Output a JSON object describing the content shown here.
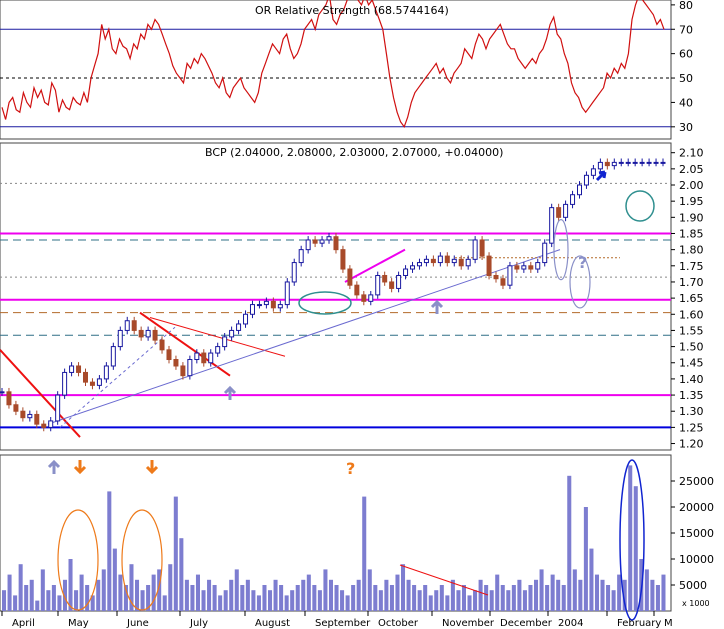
{
  "chart_data": [
    {
      "type": "line",
      "title": "OR Relative Strength (68.5744164)",
      "ylim": [
        25,
        82
      ],
      "yticks": [
        30,
        40,
        50,
        60,
        70,
        80
      ],
      "reference_lines": [
        30,
        50,
        70
      ],
      "color": "#d01010",
      "series": [
        {
          "values": [
            38,
            33,
            40,
            42,
            37,
            36,
            44,
            40,
            38,
            46,
            42,
            45,
            40,
            39,
            48,
            45,
            36,
            41,
            38,
            37,
            42,
            40,
            39,
            44,
            40,
            50,
            55,
            60,
            72,
            66,
            70,
            62,
            60,
            66,
            63,
            62,
            58,
            64,
            62,
            68,
            66,
            72,
            70,
            74,
            72,
            68,
            64,
            60,
            55,
            52,
            50,
            48,
            56,
            54,
            58,
            56,
            60,
            58,
            55,
            52,
            48,
            46,
            50,
            44,
            42,
            46,
            48,
            50,
            46,
            44,
            42,
            40,
            44,
            52,
            56,
            60,
            64,
            62,
            60,
            66,
            68,
            62,
            58,
            60,
            64,
            70,
            72,
            74,
            70,
            76,
            78,
            80,
            84,
            74,
            72,
            76,
            78,
            82,
            84,
            86,
            82,
            80,
            84,
            80,
            82,
            78,
            74,
            70,
            60,
            50,
            42,
            36,
            32,
            30,
            34,
            40,
            44,
            46,
            48,
            50,
            52,
            54,
            56,
            52,
            54,
            50,
            48,
            52,
            54,
            56,
            62,
            60,
            58,
            64,
            68,
            66,
            62,
            66,
            68,
            70,
            72,
            68,
            64,
            62,
            62,
            58,
            56,
            54,
            56,
            58,
            56,
            60,
            62,
            66,
            72,
            75,
            68,
            66,
            60,
            56,
            48,
            44,
            42,
            38,
            36,
            38,
            40,
            42,
            44,
            46,
            52,
            50,
            54,
            52,
            56,
            54,
            60,
            74,
            80,
            84,
            82,
            80,
            78,
            76,
            72,
            74,
            70
          ]
        }
      ]
    },
    {
      "type": "line",
      "title": "BCP (2.04000, 2.08000, 2.03000, 2.07000, +0.04000)",
      "ylim": [
        1.18,
        2.13
      ],
      "yticks": [
        1.2,
        1.25,
        1.3,
        1.35,
        1.4,
        1.45,
        1.5,
        1.55,
        1.6,
        1.65,
        1.7,
        1.75,
        1.8,
        1.85,
        1.9,
        1.95,
        2.0,
        2.05,
        2.1
      ],
      "ytick_labels": [
        "1.20",
        "1.25",
        "1.30",
        "1.35",
        "1.40",
        "1.45",
        "1.50",
        "1.55",
        "1.60",
        "1.65",
        "1.70",
        "1.75",
        "1.80",
        "1.85",
        "1.90",
        "1.95",
        "2.00",
        "2.05",
        "2.10"
      ],
      "x": [
        0,
        7,
        14,
        21,
        28,
        35,
        42,
        49,
        56,
        63,
        70,
        77,
        84,
        91,
        98,
        105,
        112,
        119,
        126,
        133,
        140,
        147,
        154,
        161,
        168,
        175,
        182,
        189,
        196,
        203,
        210,
        217,
        224,
        231,
        238,
        245,
        252,
        259,
        266,
        273,
        280,
        287,
        294,
        301,
        308,
        315,
        322,
        329,
        336,
        343,
        350,
        357,
        364,
        371,
        378,
        385,
        392,
        399,
        406,
        413,
        420,
        427,
        434,
        441,
        448,
        455,
        462,
        469,
        476,
        483,
        490,
        497,
        504,
        511,
        518,
        525,
        532,
        539,
        546,
        553,
        560,
        567,
        574,
        581,
        588,
        595,
        602,
        609,
        616,
        623,
        630,
        637,
        644,
        651,
        658,
        665
      ],
      "close": [
        1.36,
        1.32,
        1.3,
        1.28,
        1.29,
        1.26,
        1.25,
        1.27,
        1.35,
        1.42,
        1.44,
        1.42,
        1.39,
        1.38,
        1.4,
        1.44,
        1.5,
        1.55,
        1.58,
        1.55,
        1.53,
        1.55,
        1.52,
        1.49,
        1.46,
        1.44,
        1.41,
        1.46,
        1.48,
        1.45,
        1.48,
        1.5,
        1.53,
        1.55,
        1.57,
        1.6,
        1.63,
        1.63,
        1.64,
        1.62,
        1.63,
        1.7,
        1.76,
        1.8,
        1.83,
        1.82,
        1.83,
        1.84,
        1.8,
        1.74,
        1.69,
        1.66,
        1.64,
        1.66,
        1.72,
        1.7,
        1.68,
        1.72,
        1.74,
        1.75,
        1.76,
        1.77,
        1.76,
        1.78,
        1.76,
        1.77,
        1.75,
        1.77,
        1.83,
        1.78,
        1.72,
        1.71,
        1.69,
        1.75,
        1.74,
        1.75,
        1.74,
        1.76,
        1.82,
        1.93,
        1.9,
        1.94,
        1.97,
        2.0,
        2.03,
        2.05,
        2.07,
        2.06,
        2.07,
        2.07,
        2.07,
        2.07,
        2.07,
        2.07,
        2.07,
        2.07
      ],
      "horizontal_lines": [
        {
          "value": 1.35,
          "color": "#ee00ee",
          "style": "solid"
        },
        {
          "value": 1.25,
          "color": "#0000dd",
          "style": "solid"
        },
        {
          "value": 1.85,
          "color": "#ee00ee",
          "style": "solid"
        },
        {
          "value": 1.645,
          "color": "#ee00ee",
          "style": "solid"
        },
        {
          "value": 1.83,
          "color": "#2f6f86",
          "style": "dashed"
        },
        {
          "value": 1.605,
          "color": "#b36a2a",
          "style": "dashed"
        },
        {
          "value": 1.535,
          "color": "#2f6f86",
          "style": "dashed"
        },
        {
          "value": 2.005,
          "color": "#888888",
          "style": "dotted"
        },
        {
          "value": 1.715,
          "color": "#888888",
          "style": "dotted"
        }
      ]
    },
    {
      "type": "bar",
      "title": "Volume",
      "ylim": [
        0,
        30000
      ],
      "yticks": [
        5000,
        10000,
        15000,
        20000,
        25000
      ],
      "ytick_labels": [
        "5000",
        "10000",
        "15000",
        "20000",
        "25000"
      ],
      "unit_label": "x 1000",
      "values": [
        4000,
        7000,
        3000,
        9000,
        5000,
        6000,
        2000,
        8000,
        4000,
        5000,
        3000,
        6000,
        10000,
        4000,
        7000,
        5000,
        3000,
        6000,
        8000,
        23000,
        12000,
        7000,
        5000,
        9000,
        6000,
        4000,
        5000,
        7000,
        8000,
        3000,
        9000,
        22000,
        14000,
        6000,
        5000,
        7000,
        4000,
        6000,
        5000,
        3000,
        4000,
        6000,
        8000,
        5000,
        6000,
        4000,
        3000,
        5000,
        4000,
        6000,
        5000,
        3000,
        4000,
        5000,
        6000,
        7000,
        5000,
        4000,
        8000,
        6000,
        5000,
        4000,
        3000,
        5000,
        6000,
        22000,
        8000,
        5000,
        4000,
        6000,
        5000,
        7000,
        9000,
        6000,
        5000,
        4000,
        5000,
        3000,
        4000,
        5000,
        3000,
        6000,
        4000,
        5000,
        3000,
        4000,
        6000,
        5000,
        4000,
        7000,
        5000,
        4000,
        5000,
        6000,
        4000,
        5000,
        6000,
        8000,
        5000,
        7000,
        6000,
        5000,
        26000,
        8000,
        6000,
        20000,
        12000,
        7000,
        6000,
        5000,
        4000,
        7000,
        6000,
        28000,
        24000,
        10000,
        8000,
        6000,
        5000,
        7000
      ],
      "annotations": [
        "?",
        "?"
      ]
    }
  ],
  "x_axis": {
    "months": [
      "April",
      "May",
      "June",
      "July",
      "August",
      "September",
      "October",
      "November",
      "December",
      "2004",
      "February",
      "M"
    ]
  }
}
